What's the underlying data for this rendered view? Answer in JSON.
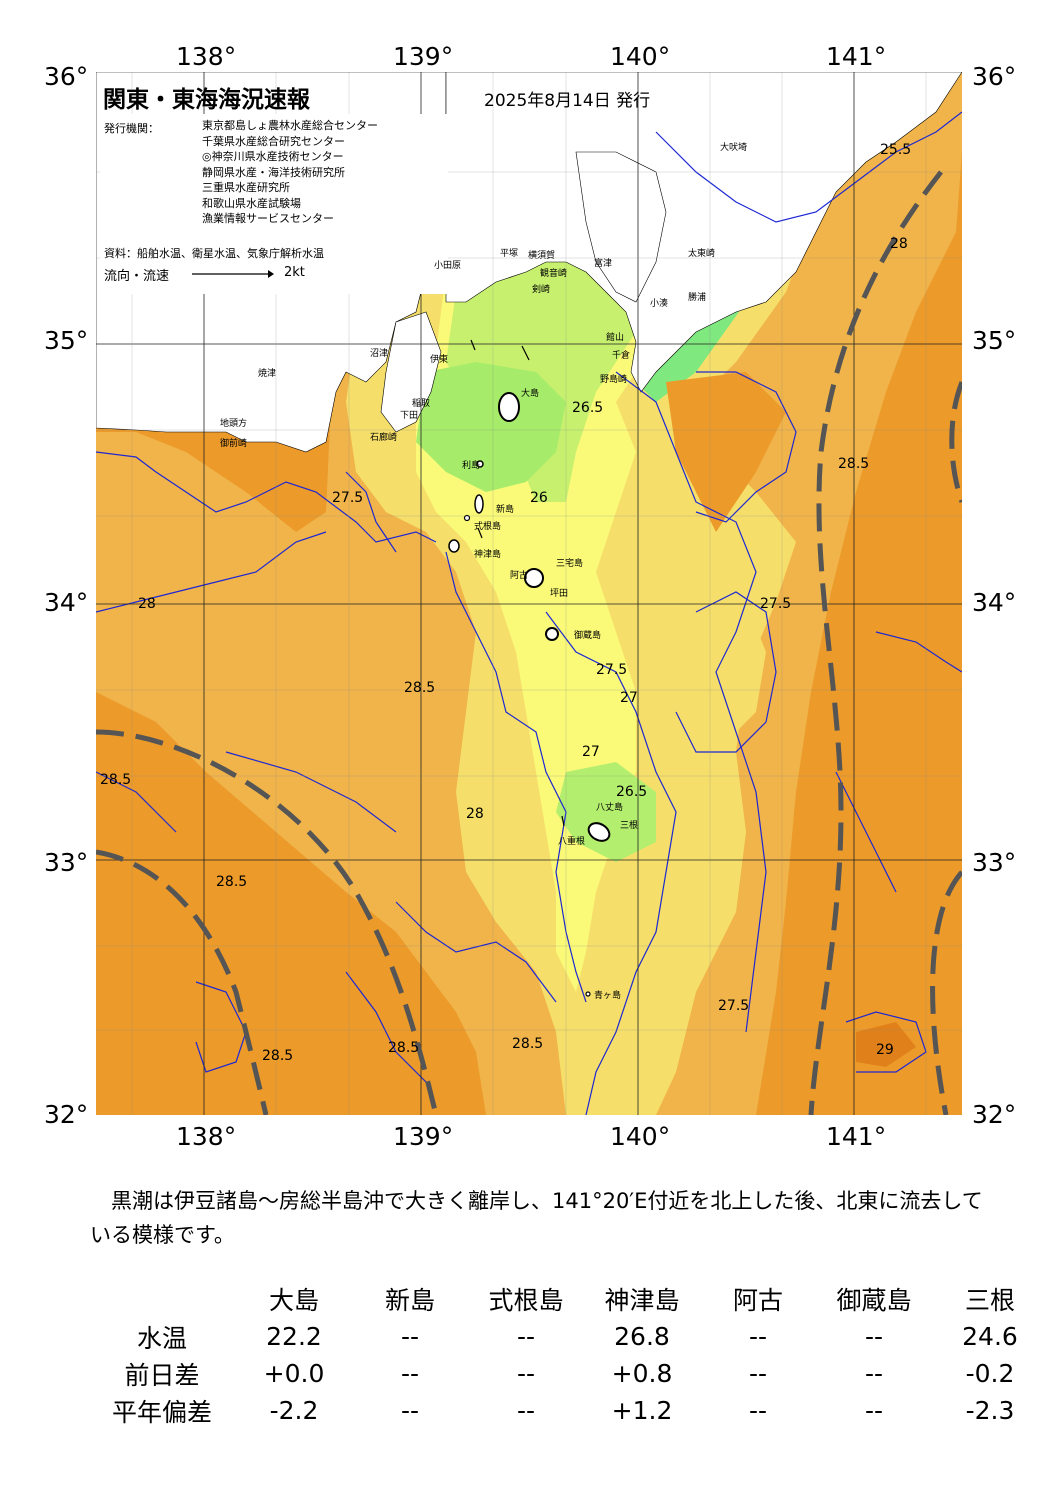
{
  "header": {
    "title": "関東・東海海況速報",
    "date": "2025年8月14日 発行",
    "issuer_label": "発行機関：",
    "issuers": [
      "東京都島しょ農林水産総合センター",
      "千葉県水産総合研究センター",
      "◎神奈川県水産技術センター",
      "静岡県水産・海洋技術研究所",
      "三重県水産研究所",
      "和歌山県水産試験場",
      "漁業情報サービスセンター"
    ],
    "source": "資料：船舶水温、衛星水温、気象庁解析水温",
    "flow_label": "流向・流速",
    "flow_scale": "2kt"
  },
  "axes": {
    "lon_labels": [
      "138°",
      "139°",
      "140°",
      "141°"
    ],
    "lat_labels": [
      "36°",
      "35°",
      "34°",
      "33°",
      "32°"
    ]
  },
  "colors": {
    "land": "#ffffff",
    "sst_25": "#7fe87f",
    "sst_26": "#b4ee6e",
    "sst_27": "#fafa78",
    "sst_275": "#f5df6a",
    "sst_28": "#f0b44a",
    "sst_285": "#ec9a2a",
    "sst_29": "#e88a1f",
    "isotherm": "#1e28d2",
    "kuroshio_axis": "#555555"
  },
  "place_names": {
    "izu_islands": [
      "大島",
      "利島",
      "新島",
      "式根島",
      "神津島",
      "三宅島",
      "阿古",
      "坪田",
      "御蔵島",
      "八丈島",
      "三根",
      "八重根",
      "青ヶ島"
    ],
    "coast": [
      "沼津",
      "伊東",
      "稲取",
      "下田",
      "石廊崎",
      "焼津",
      "御前崎",
      "地頭方",
      "小田原",
      "平塚",
      "横須賀",
      "観音崎",
      "剣崎",
      "富津",
      "館山",
      "千倉",
      "野島崎",
      "小湊",
      "勝浦",
      "太東崎",
      "大吠埼"
    ]
  },
  "isotherm_labels": [
    "25.5",
    "26",
    "26.5",
    "27",
    "27.5",
    "28",
    "28.5",
    "29"
  ],
  "summary": "　黒潮は伊豆諸島～房総半島沖で大きく離岸し、141°20′E付近を北上した後、北東に流去している模様です。",
  "table": {
    "columns": [
      "大島",
      "新島",
      "式根島",
      "神津島",
      "阿古",
      "御蔵島",
      "三根"
    ],
    "rows": [
      {
        "label": "水温",
        "values": [
          "22.2",
          "--",
          "--",
          "26.8",
          "--",
          "--",
          "24.6"
        ]
      },
      {
        "label": "前日差",
        "values": [
          "+0.0",
          "--",
          "--",
          "+0.8",
          "--",
          "--",
          "-0.2"
        ]
      },
      {
        "label": "平年偏差",
        "values": [
          "-2.2",
          "--",
          "--",
          "+1.2",
          "--",
          "--",
          "-2.3"
        ]
      }
    ]
  }
}
